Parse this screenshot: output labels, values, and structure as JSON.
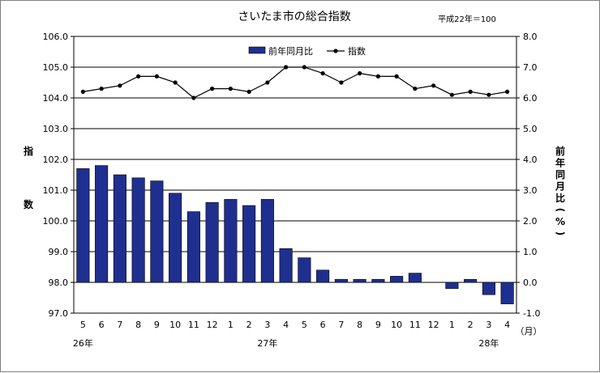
{
  "chart_data": {
    "type": "bar+line",
    "title": "さいたま市の総合指数",
    "base_note": "平成22年＝100",
    "y_left_label": "指数",
    "y_right_label": "前年同月比(%)",
    "y_left": {
      "min": 97.0,
      "max": 106.0,
      "step": 1.0,
      "ticks": [
        "97.0",
        "98.0",
        "99.0",
        "100.0",
        "101.0",
        "102.0",
        "103.0",
        "104.0",
        "105.0",
        "106.0"
      ]
    },
    "y_right": {
      "min": -1.0,
      "max": 8.0,
      "step": 1.0,
      "ticks": [
        "-1.0",
        "0.0",
        "1.0",
        "2.0",
        "3.0",
        "4.0",
        "5.0",
        "6.0",
        "7.0",
        "8.0"
      ]
    },
    "categories": [
      "5",
      "6",
      "7",
      "8",
      "9",
      "10",
      "11",
      "12",
      "1",
      "2",
      "3",
      "4",
      "5",
      "6",
      "7",
      "8",
      "9",
      "10",
      "11",
      "12",
      "1",
      "2",
      "3",
      "4"
    ],
    "month_unit": "（月）",
    "year_labels": [
      {
        "label": "26年",
        "index": 0
      },
      {
        "label": "27年",
        "index": 10
      },
      {
        "label": "28年",
        "index": 22
      }
    ],
    "series": [
      {
        "name": "前年同月比",
        "kind": "bar",
        "axis": "right",
        "color": "#1f2f8f",
        "values": [
          3.7,
          3.8,
          3.5,
          3.4,
          3.3,
          2.9,
          2.3,
          2.6,
          2.7,
          2.5,
          2.7,
          1.1,
          0.8,
          0.4,
          0.1,
          0.1,
          0.1,
          0.2,
          0.3,
          0.0,
          -0.2,
          0.1,
          -0.4,
          -0.7
        ]
      },
      {
        "name": "指数",
        "kind": "line",
        "axis": "left",
        "color": "#000000",
        "values": [
          104.2,
          104.3,
          104.4,
          104.7,
          104.7,
          104.5,
          104.0,
          104.3,
          104.3,
          104.2,
          104.5,
          105.0,
          105.0,
          104.8,
          104.5,
          104.8,
          104.7,
          104.7,
          104.3,
          104.4,
          104.1,
          104.2,
          104.1,
          104.2
        ]
      }
    ],
    "legend": "top-center",
    "grid": true
  }
}
